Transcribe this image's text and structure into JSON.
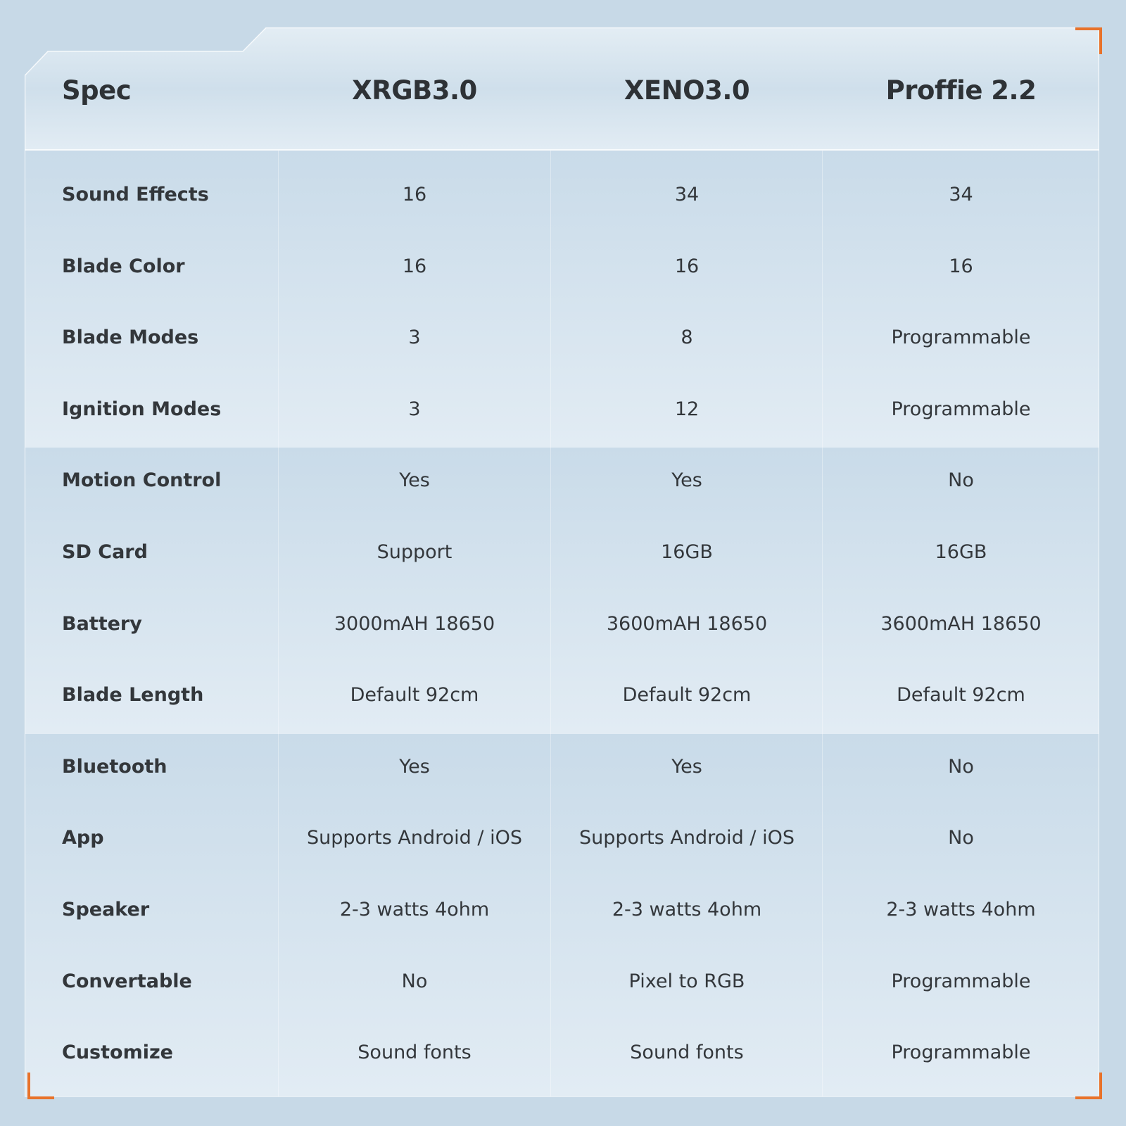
{
  "colors": {
    "accent": "#e8722a",
    "background": "#c7d9e7",
    "text": "#2e3236"
  },
  "header": {
    "columns": [
      "Spec",
      "XRGB3.0",
      "XENO3.0",
      "Proffie 2.2"
    ]
  },
  "rows": [
    {
      "label": "Sound Effects",
      "values": [
        "16",
        "34",
        "34"
      ]
    },
    {
      "label": "Blade Color",
      "values": [
        "16",
        "16",
        "16"
      ]
    },
    {
      "label": "Blade Modes",
      "values": [
        "3",
        "8",
        "Programmable"
      ]
    },
    {
      "label": "Ignition Modes",
      "values": [
        "3",
        "12",
        "Programmable"
      ]
    },
    {
      "label": "Motion Control",
      "values": [
        "Yes",
        "Yes",
        "No"
      ]
    },
    {
      "label": "SD Card",
      "values": [
        "Support",
        "16GB",
        "16GB"
      ]
    },
    {
      "label": "Battery",
      "values": [
        "3000mAH 18650",
        "3600mAH 18650",
        "3600mAH 18650"
      ]
    },
    {
      "label": "Blade Length",
      "values": [
        "Default 92cm",
        "Default 92cm",
        "Default 92cm"
      ]
    },
    {
      "label": "Bluetooth",
      "values": [
        "Yes",
        "Yes",
        "No"
      ]
    },
    {
      "label": "App",
      "values": [
        "Supports Android / iOS",
        "Supports Android / iOS",
        "No"
      ]
    },
    {
      "label": "Speaker",
      "values": [
        "2-3 watts 4ohm",
        "2-3 watts 4ohm",
        "2-3 watts 4ohm"
      ]
    },
    {
      "label": "Convertable",
      "values": [
        "No",
        "Pixel to RGB",
        "Programmable"
      ]
    },
    {
      "label": "Customize",
      "values": [
        "Sound fonts",
        "Sound fonts",
        "Programmable"
      ]
    }
  ]
}
